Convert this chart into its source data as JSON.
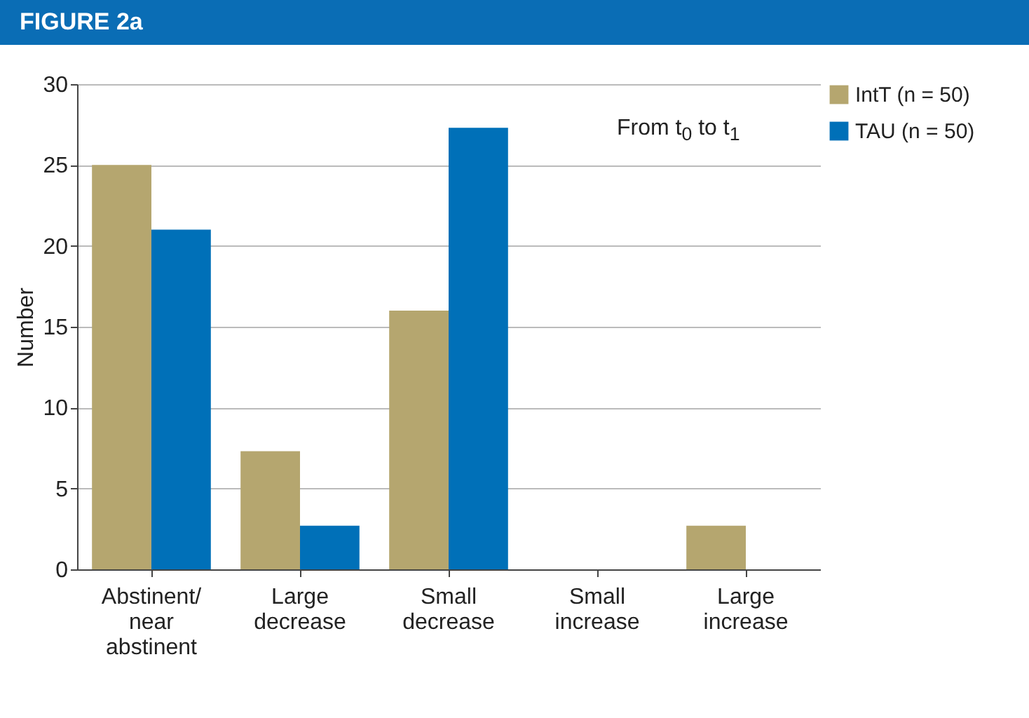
{
  "chart_data": {
    "type": "bar",
    "title": "FIGURE 2a",
    "ylabel": "Number",
    "categories": [
      "Abstinent/ near abstinent",
      "Large decrease",
      "Small decrease",
      "Small increase",
      "Large increase"
    ],
    "series": [
      {
        "name": "IntT (n = 50)",
        "color": "#b5a66f",
        "values": [
          25,
          7.3,
          16,
          0,
          2.7
        ]
      },
      {
        "name": "TAU (n = 50)",
        "color": "#0070b8",
        "values": [
          21,
          2.7,
          27.3,
          0,
          0
        ]
      }
    ],
    "ylim": [
      0,
      30
    ],
    "yticks": [
      0,
      5,
      10,
      15,
      20,
      25,
      30
    ],
    "grid": "y",
    "legend": "right",
    "annotations": [
      "From t$_{0}$ to t$_{1}$"
    ]
  }
}
